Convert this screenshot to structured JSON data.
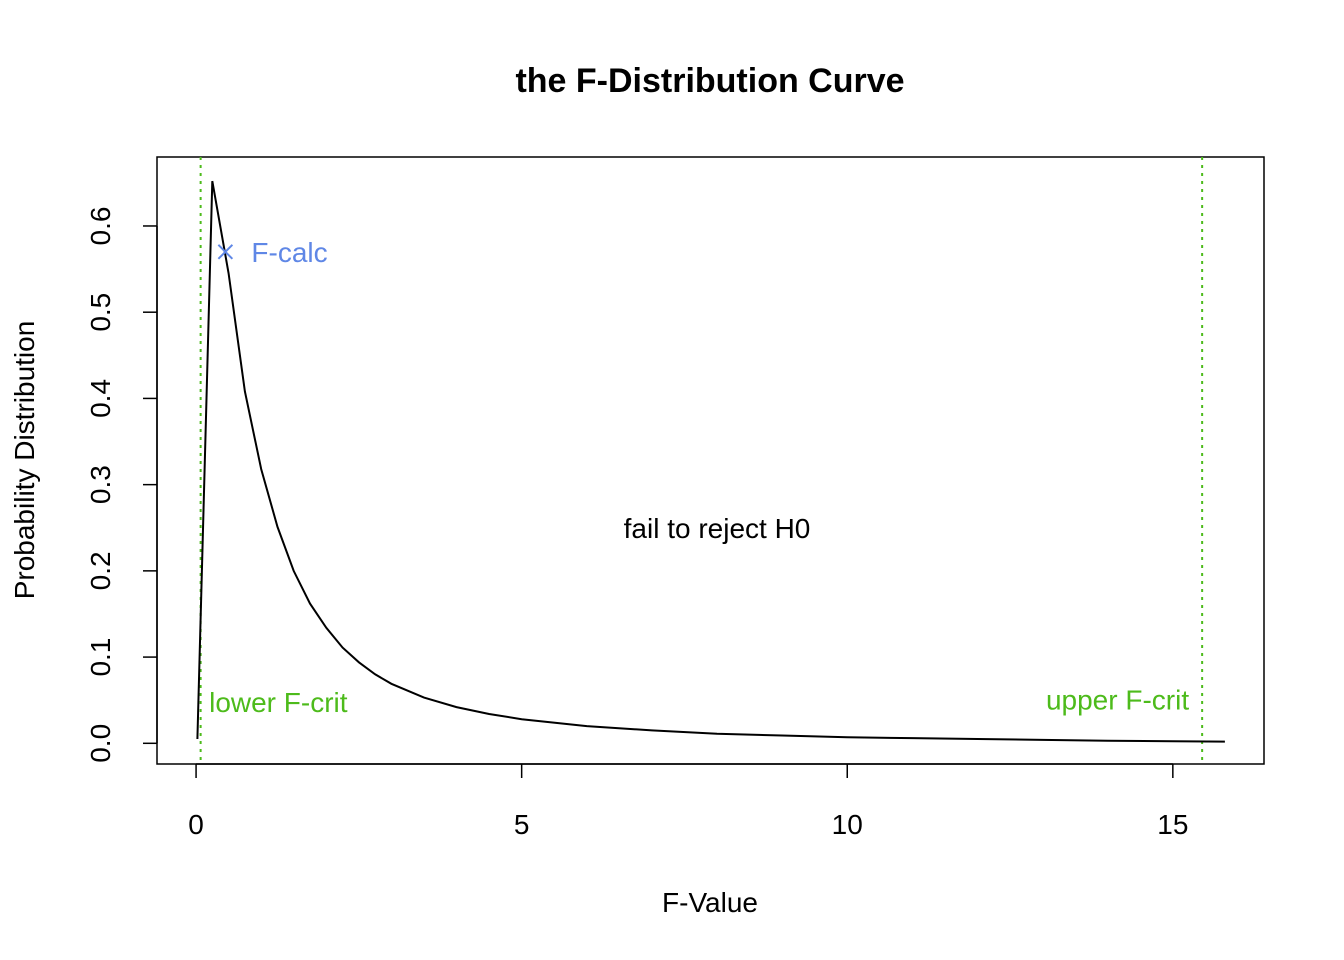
{
  "chart_data": {
    "type": "line",
    "title": "the F-Distribution Curve",
    "xlabel": "F-Value",
    "ylabel": "Probability Distribution",
    "xlim": [
      -0.6,
      16.4
    ],
    "ylim": [
      -0.024,
      0.68
    ],
    "x_ticks": [
      0,
      5,
      10,
      15
    ],
    "x_tick_labels": [
      "0",
      "5",
      "10",
      "15"
    ],
    "y_ticks": [
      0.0,
      0.1,
      0.2,
      0.3,
      0.4,
      0.5,
      0.6
    ],
    "y_tick_labels": [
      "0.0",
      "0.1",
      "0.2",
      "0.3",
      "0.4",
      "0.5",
      "0.6"
    ],
    "grid": false,
    "series": [
      {
        "color": "#000000",
        "x": [
          0.02,
          0.25,
          0.5,
          0.75,
          1.0,
          1.25,
          1.5,
          1.75,
          2.0,
          2.25,
          2.5,
          2.75,
          3.0,
          3.5,
          4.0,
          4.5,
          5.0,
          6.0,
          7.0,
          8.0,
          9.0,
          10.0,
          11.0,
          12.0,
          13.0,
          14.0,
          15.0,
          15.8
        ],
        "y": [
          0.005,
          0.652,
          0.545,
          0.408,
          0.318,
          0.251,
          0.2,
          0.162,
          0.134,
          0.111,
          0.094,
          0.08,
          0.069,
          0.053,
          0.042,
          0.034,
          0.028,
          0.02,
          0.015,
          0.011,
          0.009,
          0.007,
          0.006,
          0.005,
          0.004,
          0.003,
          0.0025,
          0.002
        ]
      }
    ],
    "vlines": [
      {
        "x": 0.07,
        "color": "#4dbb1b",
        "style": "dotted"
      },
      {
        "x": 15.45,
        "color": "#4dbb1b",
        "style": "dotted"
      }
    ],
    "points": [
      {
        "x": 0.45,
        "y": 0.57,
        "marker": "x",
        "color": "#5f87e6"
      }
    ],
    "annotations": [
      {
        "id": "fcalc",
        "text": "F-calc",
        "x": 0.85,
        "y": 0.57,
        "color": "#5f87e6",
        "anchor": "start"
      },
      {
        "id": "fail",
        "text": "fail to reject H0",
        "x": 8.0,
        "y": 0.25,
        "color": "#000000",
        "anchor": "middle"
      },
      {
        "id": "lower",
        "text": "lower F-crit",
        "x": 0.2,
        "y": 0.048,
        "color": "#4dbb1b",
        "anchor": "start"
      },
      {
        "id": "upper",
        "text": "upper F-crit",
        "x": 15.25,
        "y": 0.051,
        "color": "#4dbb1b",
        "anchor": "end"
      }
    ]
  }
}
